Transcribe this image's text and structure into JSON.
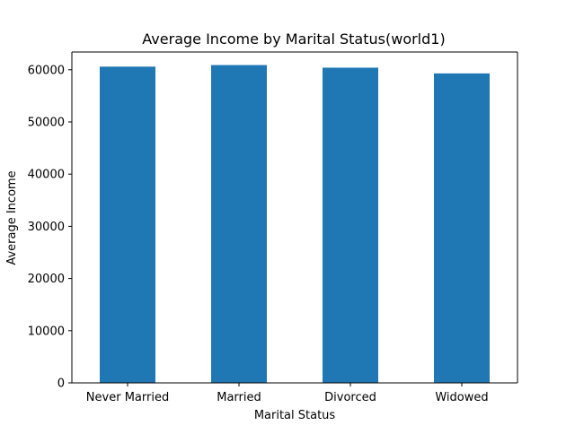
{
  "chart_data": {
    "type": "bar",
    "title": "Average Income by Marital Status(world1)",
    "xlabel": "Marital Status",
    "ylabel": "Average Income",
    "categories": [
      "Never Married",
      "Married",
      "Divorced",
      "Widowed"
    ],
    "values": [
      60600,
      60900,
      60400,
      59300
    ],
    "ylim": [
      0,
      63400
    ],
    "yticks": [
      0,
      10000,
      20000,
      30000,
      40000,
      50000,
      60000
    ],
    "ytick_labels": [
      "0",
      "10000",
      "20000",
      "30000",
      "40000",
      "50000",
      "60000"
    ],
    "grid": false,
    "legend": "none",
    "colors": {
      "bar": "#1f77b4",
      "axes": "#000000",
      "background": "#ffffff"
    }
  }
}
